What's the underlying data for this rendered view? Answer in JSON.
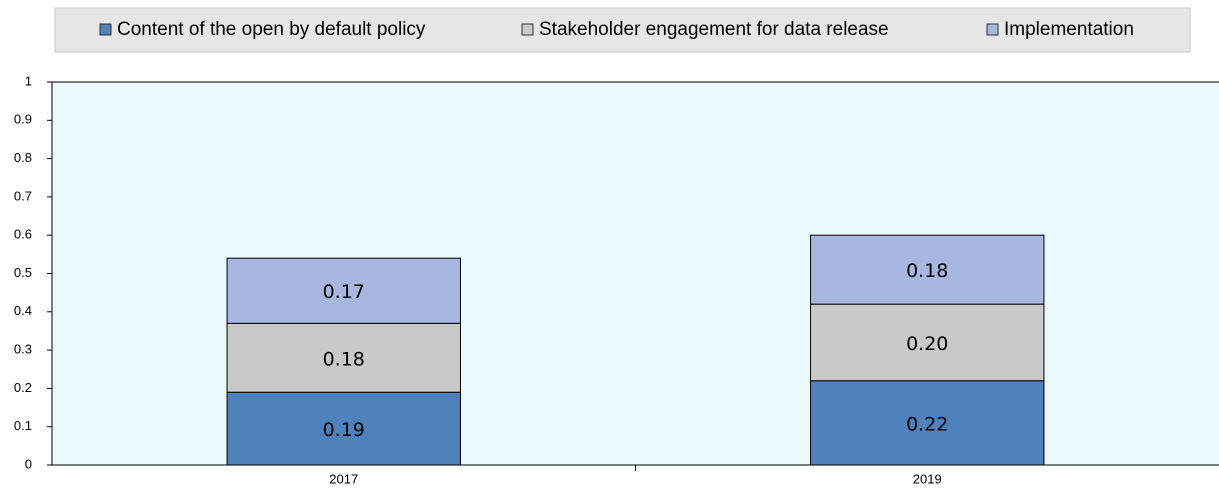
{
  "chart_data": {
    "type": "stacked_bar",
    "categories": [
      "2017",
      "2019"
    ],
    "series": [
      {
        "name": "Content of the open by default policy",
        "color": "#4f81bd",
        "values": [
          0.19,
          0.22
        ],
        "value_labels": [
          "0.19",
          "0.22"
        ]
      },
      {
        "name": "Stakeholder engagement for data release",
        "color": "#c9c9c9",
        "values": [
          0.18,
          0.2
        ],
        "value_labels": [
          "0.18",
          "0.20"
        ]
      },
      {
        "name": "Implementation",
        "color": "#a7b7e0",
        "values": [
          0.17,
          0.18
        ],
        "value_labels": [
          "0.17",
          "0.18"
        ]
      }
    ],
    "ylim": [
      0,
      1
    ],
    "yticks": [
      0,
      0.1,
      0.2,
      0.3,
      0.4,
      0.5,
      0.6,
      0.7,
      0.8,
      0.9,
      1
    ],
    "legend": "top"
  }
}
